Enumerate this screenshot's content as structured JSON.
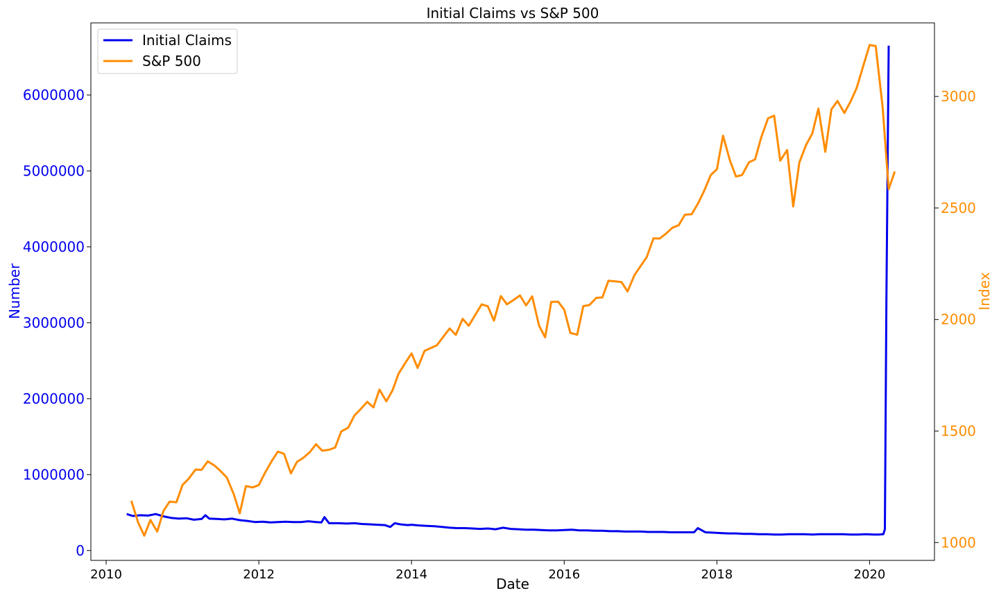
{
  "chart_data": {
    "type": "line",
    "title": "Initial Claims vs S&P 500",
    "xlabel": "Date",
    "ylabel_left": "Number",
    "ylabel_right": "Index",
    "xlim": [
      2009.8,
      2020.85
    ],
    "ylim_left": [
      -130000,
      6950000
    ],
    "ylim_right": [
      920,
      3330
    ],
    "x_ticks": [
      2010,
      2012,
      2014,
      2016,
      2018,
      2020
    ],
    "x_tick_labels": [
      "2010",
      "2012",
      "2014",
      "2016",
      "2018",
      "2020"
    ],
    "y_left_ticks": [
      0,
      1000000,
      2000000,
      3000000,
      4000000,
      5000000,
      6000000
    ],
    "y_left_tick_labels": [
      "0",
      "1000000",
      "2000000",
      "3000000",
      "4000000",
      "5000000",
      "6000000"
    ],
    "y_right_ticks": [
      1000,
      1500,
      2000,
      2500,
      3000
    ],
    "y_right_tick_labels": [
      "1000",
      "1500",
      "2000",
      "2500",
      "3000"
    ],
    "legend_position": "top-left",
    "grid": false,
    "colors": {
      "claims": "#0000ee",
      "sp500": "#ff8c00"
    },
    "series": [
      {
        "name": "Initial Claims",
        "axis": "left",
        "x": [
          2010.27,
          2010.35,
          2010.45,
          2010.55,
          2010.65,
          2010.75,
          2010.85,
          2010.95,
          2011.05,
          2011.15,
          2011.25,
          2011.3,
          2011.35,
          2011.45,
          2011.55,
          2011.65,
          2011.75,
          2011.85,
          2011.95,
          2012.05,
          2012.15,
          2012.25,
          2012.35,
          2012.45,
          2012.55,
          2012.65,
          2012.75,
          2012.82,
          2012.86,
          2012.92,
          2013.05,
          2013.15,
          2013.25,
          2013.35,
          2013.45,
          2013.55,
          2013.65,
          2013.72,
          2013.78,
          2013.85,
          2013.95,
          2014.0,
          2014.1,
          2014.2,
          2014.3,
          2014.4,
          2014.5,
          2014.6,
          2014.7,
          2014.8,
          2014.9,
          2015.0,
          2015.1,
          2015.2,
          2015.3,
          2015.4,
          2015.5,
          2015.6,
          2015.7,
          2015.8,
          2015.9,
          2016.0,
          2016.1,
          2016.2,
          2016.3,
          2016.4,
          2016.5,
          2016.6,
          2016.7,
          2016.8,
          2016.9,
          2017.0,
          2017.1,
          2017.2,
          2017.3,
          2017.4,
          2017.5,
          2017.6,
          2017.7,
          2017.75,
          2017.85,
          2017.95,
          2018.05,
          2018.15,
          2018.25,
          2018.35,
          2018.45,
          2018.55,
          2018.65,
          2018.75,
          2018.85,
          2018.95,
          2019.05,
          2019.15,
          2019.25,
          2019.35,
          2019.45,
          2019.55,
          2019.65,
          2019.75,
          2019.85,
          2019.95,
          2020.05,
          2020.12,
          2020.18,
          2020.2,
          2020.22,
          2020.25
        ],
        "values": [
          480000,
          455000,
          465000,
          460000,
          480000,
          450000,
          430000,
          420000,
          425000,
          405000,
          415000,
          465000,
          420000,
          415000,
          410000,
          420000,
          400000,
          390000,
          375000,
          380000,
          370000,
          375000,
          380000,
          375000,
          375000,
          385000,
          375000,
          370000,
          440000,
          360000,
          360000,
          355000,
          360000,
          350000,
          345000,
          340000,
          335000,
          310000,
          360000,
          345000,
          335000,
          340000,
          330000,
          325000,
          320000,
          310000,
          300000,
          295000,
          295000,
          290000,
          285000,
          290000,
          280000,
          300000,
          285000,
          280000,
          275000,
          275000,
          270000,
          265000,
          265000,
          270000,
          275000,
          265000,
          265000,
          260000,
          260000,
          255000,
          255000,
          250000,
          250000,
          250000,
          245000,
          245000,
          245000,
          240000,
          240000,
          240000,
          240000,
          295000,
          240000,
          235000,
          230000,
          225000,
          225000,
          220000,
          220000,
          215000,
          215000,
          210000,
          210000,
          215000,
          215000,
          215000,
          210000,
          215000,
          215000,
          215000,
          215000,
          210000,
          210000,
          215000,
          210000,
          210000,
          215000,
          280000,
          3300000,
          6650000
        ]
      },
      {
        "name": "S&P 500",
        "axis": "right",
        "x": [
          2010.33,
          2010.42,
          2010.5,
          2010.58,
          2010.67,
          2010.75,
          2010.83,
          2010.92,
          2011.0,
          2011.08,
          2011.17,
          2011.25,
          2011.33,
          2011.42,
          2011.5,
          2011.58,
          2011.67,
          2011.75,
          2011.83,
          2011.92,
          2012.0,
          2012.08,
          2012.17,
          2012.25,
          2012.33,
          2012.42,
          2012.5,
          2012.58,
          2012.67,
          2012.75,
          2012.83,
          2012.92,
          2013.0,
          2013.08,
          2013.17,
          2013.25,
          2013.33,
          2013.42,
          2013.5,
          2013.58,
          2013.67,
          2013.75,
          2013.83,
          2013.92,
          2014.0,
          2014.08,
          2014.17,
          2014.25,
          2014.33,
          2014.42,
          2014.5,
          2014.58,
          2014.67,
          2014.75,
          2014.83,
          2014.92,
          2015.0,
          2015.08,
          2015.17,
          2015.25,
          2015.33,
          2015.42,
          2015.5,
          2015.58,
          2015.67,
          2015.75,
          2015.83,
          2015.92,
          2016.0,
          2016.08,
          2016.17,
          2016.25,
          2016.33,
          2016.42,
          2016.5,
          2016.58,
          2016.67,
          2016.75,
          2016.83,
          2016.92,
          2017.0,
          2017.08,
          2017.17,
          2017.25,
          2017.33,
          2017.42,
          2017.5,
          2017.58,
          2017.67,
          2017.75,
          2017.83,
          2017.92,
          2018.0,
          2018.08,
          2018.17,
          2018.25,
          2018.33,
          2018.42,
          2018.5,
          2018.58,
          2018.67,
          2018.75,
          2018.83,
          2018.92,
          2019.0,
          2019.08,
          2019.17,
          2019.25,
          2019.33,
          2019.42,
          2019.5,
          2019.58,
          2019.67,
          2019.75,
          2019.83,
          2019.92,
          2020.0,
          2020.08,
          2020.17,
          2020.25,
          2020.33
        ],
        "values": [
          1187,
          1089,
          1031,
          1101,
          1049,
          1141,
          1183,
          1181,
          1258,
          1286,
          1327,
          1326,
          1364,
          1345,
          1320,
          1292,
          1218,
          1131,
          1253,
          1247,
          1258,
          1312,
          1366,
          1408,
          1398,
          1310,
          1362,
          1379,
          1406,
          1441,
          1412,
          1416,
          1426,
          1498,
          1515,
          1569,
          1597,
          1631,
          1606,
          1686,
          1633,
          1682,
          1757,
          1806,
          1848,
          1783,
          1859,
          1872,
          1884,
          1924,
          1960,
          1931,
          2003,
          1972,
          2018,
          2068,
          2059,
          1995,
          2105,
          2068,
          2086,
          2108,
          2063,
          2104,
          1973,
          1920,
          2079,
          2080,
          2044,
          1940,
          1932,
          2060,
          2065,
          2097,
          2099,
          2174,
          2171,
          2168,
          2126,
          2199,
          2239,
          2279,
          2364,
          2363,
          2384,
          2412,
          2423,
          2470,
          2472,
          2519,
          2575,
          2648,
          2674,
          2824,
          2714,
          2641,
          2648,
          2705,
          2718,
          2816,
          2902,
          2914,
          2712,
          2760,
          2507,
          2704,
          2784,
          2834,
          2946,
          2752,
          2942,
          2980,
          2926,
          2977,
          3038,
          3141,
          3231,
          3226,
          2954,
          2585,
          2664
        ]
      }
    ],
    "legend": [
      "Initial Claims",
      "S&P 500"
    ]
  }
}
